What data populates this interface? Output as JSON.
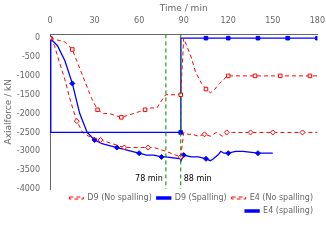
{
  "chart_data": {
    "type": "line",
    "xlabel": "Time / min",
    "ylabel": "Axialforce / kN",
    "xlim": [
      0,
      180
    ],
    "ylim": [
      -4000,
      100
    ],
    "xticks": [
      0,
      30,
      60,
      90,
      120,
      150,
      180
    ],
    "yticks": [
      0,
      -500,
      -1000,
      -1500,
      -2000,
      -2500,
      -3000,
      -3500,
      -4000
    ],
    "grid": false,
    "legend": "lower right",
    "series": [
      {
        "name": "D9 (No spalling)",
        "color": "red",
        "line_style": "dashed",
        "marker": "square-open",
        "x": [
          0,
          5,
          10,
          15,
          18,
          22,
          25,
          28,
          32,
          36,
          40,
          44,
          48,
          52,
          56,
          60,
          64,
          68,
          72,
          76,
          78,
          88,
          90,
          92,
          95,
          98,
          102,
          105,
          108,
          111,
          114,
          117,
          118,
          119,
          120,
          122,
          125,
          128,
          132,
          138,
          145,
          155,
          165,
          175,
          180
        ],
        "values": [
          0,
          -50,
          -100,
          -300,
          -600,
          -1000,
          -1300,
          -1600,
          -1900,
          -2000,
          -2000,
          -2050,
          -2100,
          -2050,
          -2000,
          -1950,
          -1900,
          -1850,
          -1850,
          -1600,
          -1500,
          -1500,
          0,
          -200,
          -500,
          -900,
          -1200,
          -1350,
          -1450,
          -1350,
          -1200,
          -1100,
          -1050,
          -1000,
          -1000,
          -1000,
          -1000,
          -1000,
          -1000,
          -1000,
          -1000,
          -1000,
          -1000,
          -1000,
          -1000
        ]
      },
      {
        "name": "D9 (Spalling)",
        "color": "blue",
        "line_style": "solid",
        "marker": "square",
        "x": [
          0,
          0.5,
          88,
          88.1,
          90,
          95,
          100,
          105,
          110,
          115,
          118,
          119,
          120,
          125,
          130,
          140,
          150,
          160,
          170,
          180
        ],
        "values": [
          0,
          -2500,
          -2500,
          0,
          0,
          0,
          0,
          0,
          0,
          0,
          0,
          0,
          0,
          0,
          0,
          0,
          0,
          0,
          0,
          0
        ]
      },
      {
        "name": "E4 (No spalling)",
        "color": "red",
        "line_style": "dashed",
        "marker": "diamond-open",
        "x": [
          0,
          3,
          6,
          10,
          14,
          18,
          22,
          26,
          30,
          34,
          38,
          42,
          46,
          50,
          54,
          58,
          62,
          66,
          70,
          74,
          78,
          88,
          90,
          93,
          96,
          100,
          104,
          108,
          112,
          116,
          118,
          119,
          120,
          123,
          126,
          130,
          135,
          140,
          150,
          160,
          170,
          180
        ],
        "values": [
          0,
          -200,
          -600,
          -1100,
          -1700,
          -2200,
          -2500,
          -2600,
          -2650,
          -2700,
          -2750,
          -2800,
          -2850,
          -2900,
          -2900,
          -2900,
          -2900,
          -2900,
          -2900,
          -2950,
          -3000,
          -3150,
          -2500,
          -2550,
          -2550,
          -2600,
          -2550,
          -2600,
          -2500,
          -2600,
          -2550,
          -2500,
          -2500,
          -2500,
          -2500,
          -2500,
          -2500,
          -2500,
          -2500,
          -2500,
          -2500,
          -2500
        ]
      },
      {
        "name": "E4 (spalling)",
        "color": "blue",
        "line_style": "solid",
        "marker": "diamond",
        "x": [
          0,
          5,
          10,
          15,
          20,
          25,
          30,
          35,
          40,
          45,
          50,
          55,
          60,
          65,
          70,
          75,
          78,
          88,
          88.2,
          90,
          95,
          100,
          105,
          108,
          110,
          113,
          115,
          117,
          119,
          120,
          125,
          130,
          140,
          150
        ],
        "values": [
          0,
          -200,
          -600,
          -1200,
          -2000,
          -2500,
          -2700,
          -2800,
          -2850,
          -2900,
          -2950,
          -3000,
          -3050,
          -3100,
          -3100,
          -3150,
          -3150,
          -3200,
          -3250,
          -3100,
          -3150,
          -3150,
          -3200,
          -3250,
          -3200,
          -3100,
          -3000,
          -3050,
          -3050,
          -3050,
          -3000,
          -3000,
          -3050,
          -3050
        ]
      }
    ],
    "annotations": [
      {
        "x": 78,
        "label": "78 min",
        "color": "green",
        "line_style": "dashed"
      },
      {
        "x": 88,
        "label": "88 min",
        "color": "green",
        "line_style": "dashed"
      }
    ]
  }
}
